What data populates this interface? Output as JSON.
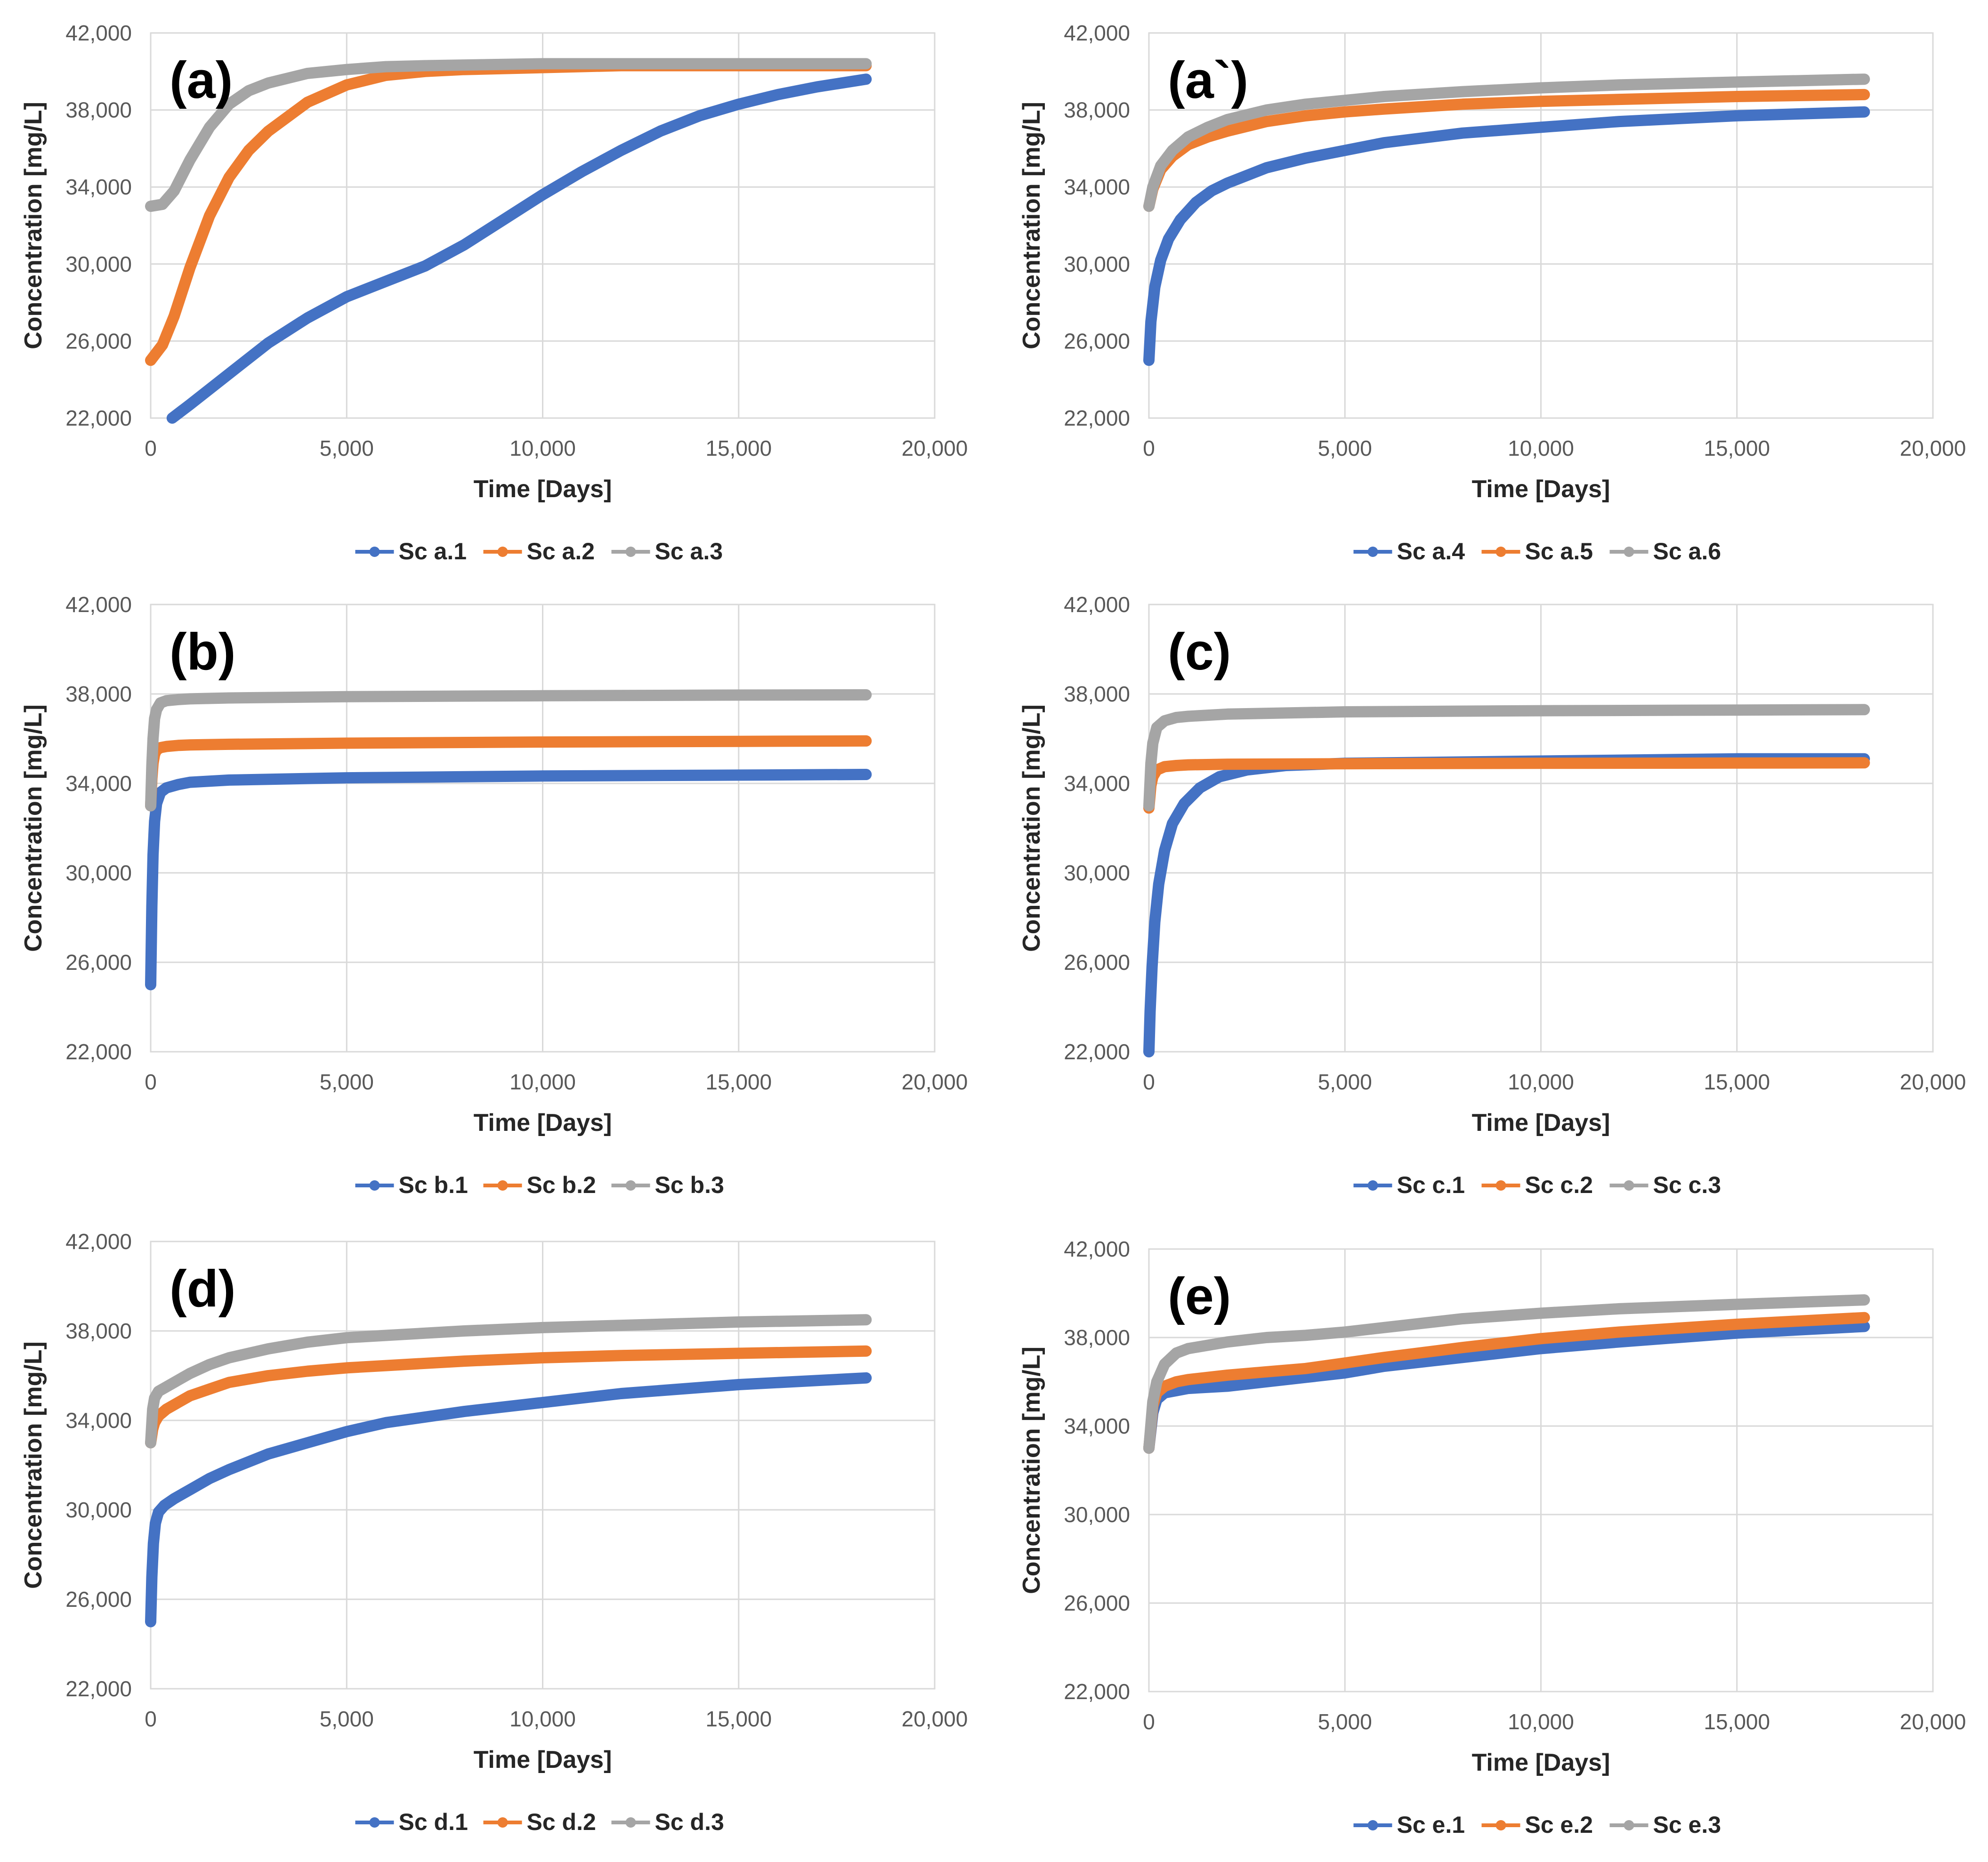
{
  "colors": {
    "series1": "#4472C4",
    "series2": "#ED7D31",
    "series3": "#A5A5A5"
  },
  "chart_data": [
    {
      "type": "line",
      "label": "(a)",
      "xlabel": "Time [Days]",
      "ylabel": "Concentration [mg/L]",
      "xlim": [
        0,
        20000
      ],
      "ylim": [
        22000,
        42000
      ],
      "xticks": [
        0,
        5000,
        10000,
        15000,
        20000
      ],
      "xtick_labels": [
        "0",
        "5,000",
        "10,000",
        "15,000",
        "20,000"
      ],
      "yticks": [
        22000,
        26000,
        30000,
        34000,
        38000,
        42000
      ],
      "ytick_labels": [
        "22,000",
        "26,000",
        "30,000",
        "34,000",
        "38,000",
        "42,000"
      ],
      "legend_position": "bottom",
      "series": [
        {
          "name": "Sc a.1",
          "x": [
            550,
            1000,
            2000,
            3000,
            4000,
            5000,
            6000,
            7000,
            8000,
            9000,
            10000,
            11000,
            12000,
            13000,
            14000,
            15000,
            16000,
            17000,
            18250
          ],
          "y": [
            22000,
            22700,
            24300,
            25900,
            27200,
            28300,
            29100,
            29900,
            31000,
            32300,
            33600,
            34800,
            35900,
            36900,
            37700,
            38300,
            38800,
            39200,
            39600
          ]
        },
        {
          "name": "Sc a.2",
          "x": [
            0,
            300,
            600,
            1000,
            1500,
            2000,
            2500,
            3000,
            4000,
            5000,
            6000,
            7000,
            8000,
            10000,
            12000,
            15000,
            18250
          ],
          "y": [
            25000,
            25800,
            27300,
            29800,
            32500,
            34500,
            35900,
            36900,
            38400,
            39300,
            39800,
            40000,
            40100,
            40200,
            40300,
            40300,
            40300
          ]
        },
        {
          "name": "Sc a.3",
          "x": [
            0,
            300,
            600,
            1000,
            1500,
            2000,
            2500,
            3000,
            4000,
            5000,
            6000,
            7000,
            10000,
            15000,
            18250
          ],
          "y": [
            33000,
            33100,
            33800,
            35400,
            37100,
            38300,
            39000,
            39400,
            39900,
            40100,
            40250,
            40300,
            40400,
            40400,
            40400
          ]
        }
      ]
    },
    {
      "type": "line",
      "label": "(a`)",
      "xlabel": "Time [Days]",
      "ylabel": "Concentration [mg/L]",
      "xlim": [
        0,
        20000
      ],
      "ylim": [
        22000,
        42000
      ],
      "xticks": [
        0,
        5000,
        10000,
        15000,
        20000
      ],
      "xtick_labels": [
        "0",
        "5,000",
        "10,000",
        "15,000",
        "20,000"
      ],
      "yticks": [
        22000,
        26000,
        30000,
        34000,
        38000,
        42000
      ],
      "ytick_labels": [
        "22,000",
        "26,000",
        "30,000",
        "34,000",
        "38,000",
        "42,000"
      ],
      "legend_position": "bottom",
      "series": [
        {
          "name": "Sc a.4",
          "x": [
            0,
            50,
            150,
            300,
            500,
            800,
            1200,
            1600,
            2000,
            3000,
            4000,
            5000,
            6000,
            8000,
            10000,
            12000,
            15000,
            18250
          ],
          "y": [
            25000,
            27000,
            28800,
            30200,
            31300,
            32300,
            33200,
            33800,
            34200,
            35000,
            35500,
            35900,
            36300,
            36800,
            37100,
            37400,
            37700,
            37900
          ]
        },
        {
          "name": "Sc a.5",
          "x": [
            0,
            100,
            300,
            600,
            1000,
            1500,
            2000,
            3000,
            4000,
            5000,
            6000,
            8000,
            10000,
            12000,
            15000,
            18250
          ],
          "y": [
            33000,
            33900,
            34900,
            35600,
            36200,
            36600,
            36900,
            37400,
            37700,
            37900,
            38050,
            38300,
            38450,
            38550,
            38700,
            38800
          ]
        },
        {
          "name": "Sc a.6",
          "x": [
            0,
            100,
            300,
            600,
            1000,
            1500,
            2000,
            3000,
            4000,
            5000,
            6000,
            8000,
            10000,
            12000,
            15000,
            18250
          ],
          "y": [
            33000,
            34000,
            35100,
            35900,
            36600,
            37100,
            37500,
            38000,
            38300,
            38500,
            38700,
            38950,
            39150,
            39300,
            39450,
            39600
          ]
        }
      ]
    },
    {
      "type": "line",
      "label": "(b)",
      "xlabel": "Time [Days]",
      "ylabel": "Concentration [mg/L]",
      "xlim": [
        0,
        20000
      ],
      "ylim": [
        22000,
        42000
      ],
      "xticks": [
        0,
        5000,
        10000,
        15000,
        20000
      ],
      "xtick_labels": [
        "0",
        "5,000",
        "10,000",
        "15,000",
        "20,000"
      ],
      "yticks": [
        22000,
        26000,
        30000,
        34000,
        38000,
        42000
      ],
      "ytick_labels": [
        "22,000",
        "26,000",
        "30,000",
        "34,000",
        "38,000",
        "42,000"
      ],
      "legend_position": "bottom",
      "series": [
        {
          "name": "Sc b.1",
          "x": [
            0,
            30,
            60,
            100,
            150,
            250,
            400,
            700,
            1000,
            2000,
            5000,
            10000,
            15000,
            18250
          ],
          "y": [
            25000,
            28500,
            30800,
            32300,
            33100,
            33600,
            33800,
            33950,
            34050,
            34150,
            34250,
            34330,
            34370,
            34400
          ]
        },
        {
          "name": "Sc b.2",
          "x": [
            0,
            30,
            60,
            100,
            150,
            250,
            400,
            700,
            1000,
            2000,
            5000,
            10000,
            15000,
            18250
          ],
          "y": [
            33000,
            34200,
            34900,
            35300,
            35500,
            35600,
            35650,
            35700,
            35720,
            35750,
            35800,
            35850,
            35880,
            35900
          ]
        },
        {
          "name": "Sc b.3",
          "x": [
            0,
            30,
            60,
            100,
            150,
            250,
            400,
            700,
            1000,
            2000,
            5000,
            10000,
            15000,
            18250
          ],
          "y": [
            33000,
            34800,
            36000,
            36900,
            37300,
            37600,
            37700,
            37750,
            37780,
            37820,
            37880,
            37920,
            37950,
            37960
          ]
        }
      ]
    },
    {
      "type": "line",
      "label": "(c)",
      "xlabel": "Time [Days]",
      "ylabel": "Concentration [mg/L]",
      "xlim": [
        0,
        20000
      ],
      "ylim": [
        22000,
        42000
      ],
      "xticks": [
        0,
        5000,
        10000,
        15000,
        20000
      ],
      "xtick_labels": [
        "0",
        "5,000",
        "10,000",
        "15,000",
        "20,000"
      ],
      "yticks": [
        22000,
        26000,
        30000,
        34000,
        38000,
        42000
      ],
      "ytick_labels": [
        "22,000",
        "26,000",
        "30,000",
        "34,000",
        "38,000",
        "42,000"
      ],
      "legend_position": "bottom",
      "series": [
        {
          "name": "Sc c.1",
          "x": [
            0,
            30,
            80,
            150,
            250,
            400,
            600,
            900,
            1300,
            1800,
            2500,
            3500,
            5000,
            10000,
            15000,
            18250
          ],
          "y": [
            22000,
            23800,
            25800,
            27800,
            29500,
            31000,
            32200,
            33100,
            33800,
            34300,
            34600,
            34800,
            34900,
            35000,
            35100,
            35100
          ]
        },
        {
          "name": "Sc c.2",
          "x": [
            0,
            50,
            100,
            200,
            400,
            700,
            1000,
            2000,
            5000,
            10000,
            15000,
            18250
          ],
          "y": [
            32900,
            33900,
            34300,
            34600,
            34750,
            34800,
            34830,
            34860,
            34880,
            34900,
            34910,
            34920
          ]
        },
        {
          "name": "Sc c.3",
          "x": [
            0,
            50,
            100,
            200,
            400,
            700,
            1000,
            2000,
            5000,
            10000,
            15000,
            18250
          ],
          "y": [
            33000,
            34900,
            35800,
            36500,
            36800,
            36950,
            37000,
            37100,
            37200,
            37250,
            37280,
            37300
          ]
        }
      ]
    },
    {
      "type": "line",
      "label": "(d)",
      "xlabel": "Time [Days]",
      "ylabel": "Concentration [mg/L]",
      "xlim": [
        0,
        20000
      ],
      "ylim": [
        22000,
        42000
      ],
      "xticks": [
        0,
        5000,
        10000,
        15000,
        20000
      ],
      "xtick_labels": [
        "0",
        "5,000",
        "10,000",
        "15,000",
        "20,000"
      ],
      "yticks": [
        22000,
        26000,
        30000,
        34000,
        38000,
        42000
      ],
      "ytick_labels": [
        "22,000",
        "26,000",
        "30,000",
        "34,000",
        "38,000",
        "42,000"
      ],
      "legend_position": "bottom",
      "series": [
        {
          "name": "Sc d.1",
          "x": [
            0,
            30,
            70,
            120,
            200,
            350,
            600,
            1000,
            1500,
            2000,
            3000,
            4000,
            5000,
            6000,
            8000,
            10000,
            12000,
            15000,
            18250
          ],
          "y": [
            25000,
            27000,
            28500,
            29400,
            29900,
            30200,
            30500,
            30900,
            31400,
            31800,
            32500,
            33000,
            33500,
            33900,
            34400,
            34800,
            35200,
            35600,
            35900
          ]
        },
        {
          "name": "Sc d.2",
          "x": [
            0,
            50,
            100,
            200,
            400,
            700,
            1000,
            1500,
            2000,
            3000,
            4000,
            5000,
            6000,
            8000,
            10000,
            12000,
            15000,
            18250
          ],
          "y": [
            33000,
            33600,
            33900,
            34200,
            34500,
            34800,
            35100,
            35400,
            35700,
            36000,
            36200,
            36350,
            36450,
            36650,
            36800,
            36900,
            37000,
            37100
          ]
        },
        {
          "name": "Sc d.3",
          "x": [
            0,
            50,
            100,
            200,
            400,
            700,
            1000,
            1500,
            2000,
            3000,
            4000,
            5000,
            6000,
            8000,
            10000,
            12000,
            15000,
            18250
          ],
          "y": [
            33000,
            34500,
            35000,
            35300,
            35500,
            35800,
            36100,
            36500,
            36800,
            37200,
            37500,
            37700,
            37800,
            38000,
            38150,
            38250,
            38400,
            38500
          ]
        }
      ]
    },
    {
      "type": "line",
      "label": "(e)",
      "xlabel": "Time [Days]",
      "ylabel": "Concentration [mg/L]",
      "xlim": [
        0,
        20000
      ],
      "ylim": [
        22000,
        42000
      ],
      "xticks": [
        0,
        5000,
        10000,
        15000,
        20000
      ],
      "xtick_labels": [
        "0",
        "5,000",
        "10,000",
        "15,000",
        "20,000"
      ],
      "yticks": [
        22000,
        26000,
        30000,
        34000,
        38000,
        42000
      ],
      "ytick_labels": [
        "22,000",
        "26,000",
        "30,000",
        "34,000",
        "38,000",
        "42,000"
      ],
      "legend_position": "bottom",
      "series": [
        {
          "name": "Sc e.1",
          "x": [
            0,
            100,
            200,
            400,
            700,
            1000,
            2000,
            3000,
            4000,
            5000,
            6000,
            8000,
            10000,
            12000,
            15000,
            18250
          ],
          "y": [
            33000,
            34600,
            35200,
            35500,
            35600,
            35700,
            35800,
            36000,
            36200,
            36400,
            36700,
            37100,
            37500,
            37800,
            38200,
            38500
          ]
        },
        {
          "name": "Sc e.2",
          "x": [
            0,
            100,
            200,
            400,
            700,
            1000,
            2000,
            3000,
            4000,
            5000,
            6000,
            8000,
            10000,
            12000,
            15000,
            18250
          ],
          "y": [
            33000,
            34900,
            35500,
            35800,
            36000,
            36100,
            36300,
            36450,
            36600,
            36850,
            37100,
            37550,
            37950,
            38250,
            38600,
            38900
          ]
        },
        {
          "name": "Sc e.3",
          "x": [
            0,
            100,
            200,
            400,
            700,
            1000,
            2000,
            3000,
            4000,
            5000,
            6000,
            8000,
            10000,
            12000,
            15000,
            18250
          ],
          "y": [
            33000,
            35100,
            36000,
            36800,
            37300,
            37500,
            37800,
            38000,
            38100,
            38250,
            38450,
            38850,
            39100,
            39300,
            39500,
            39700
          ]
        }
      ]
    }
  ]
}
